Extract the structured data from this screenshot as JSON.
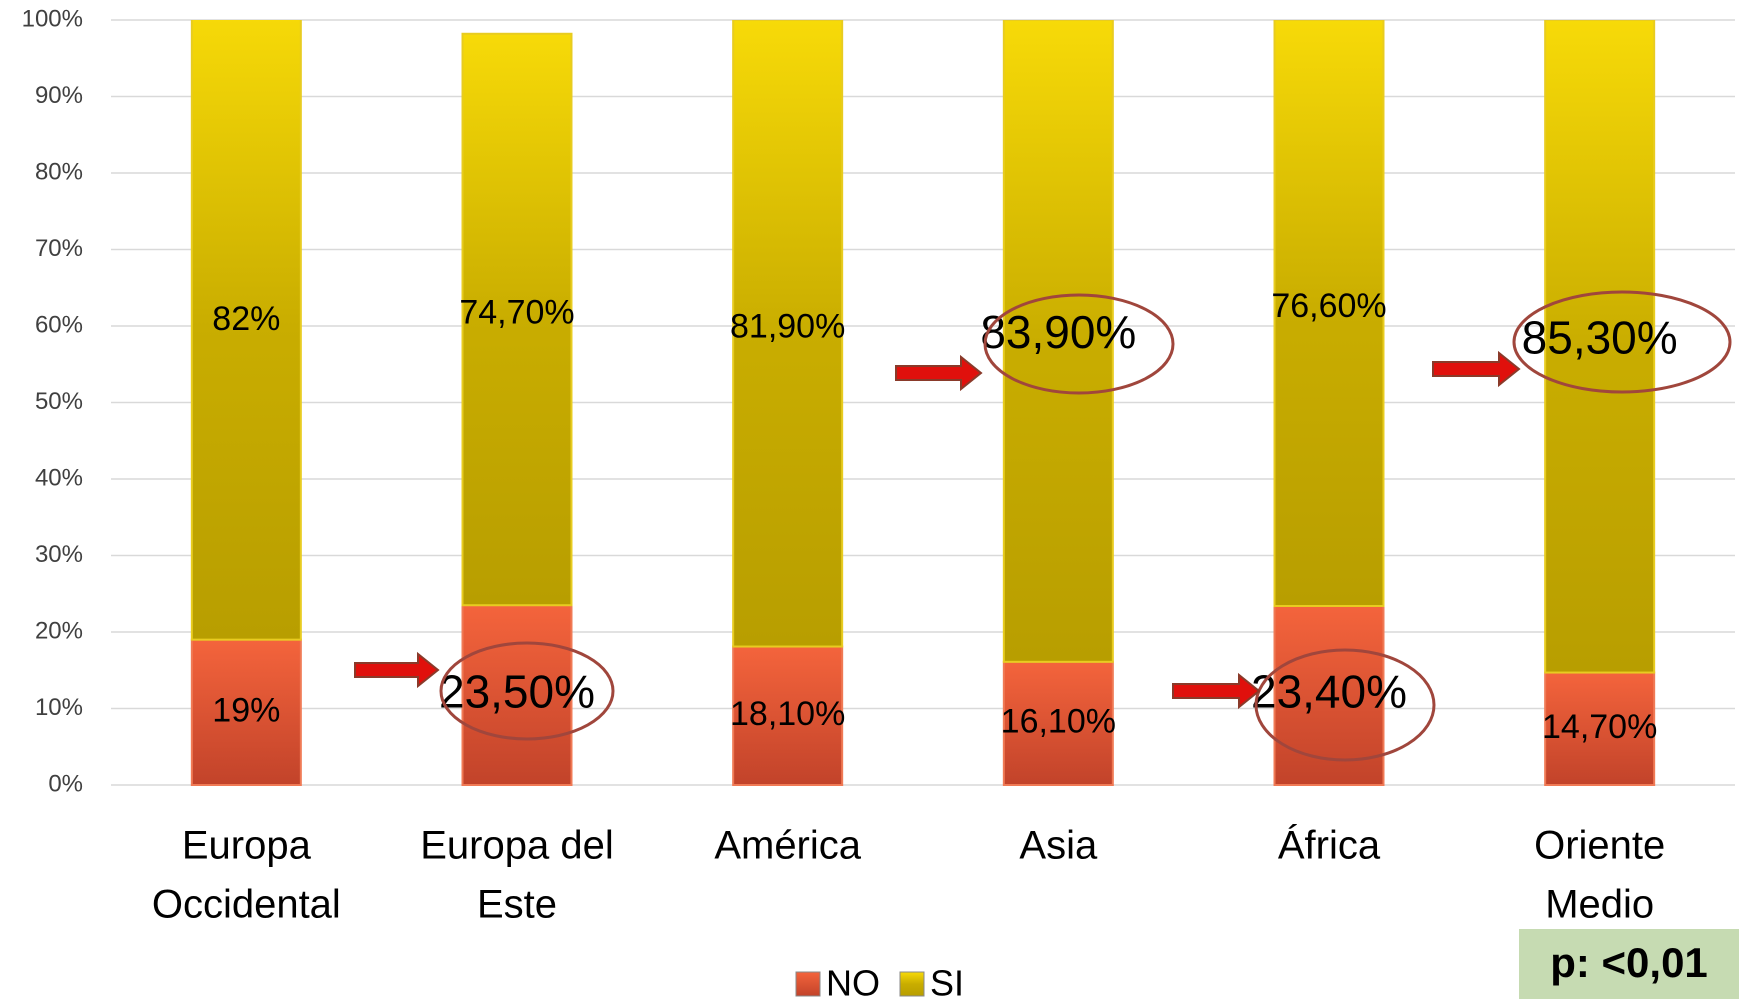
{
  "chart_data": {
    "type": "stacked-bar",
    "categories": [
      [
        "Europa",
        "Occidental"
      ],
      [
        "Europa del",
        "Este"
      ],
      [
        "América"
      ],
      [
        "Asia"
      ],
      [
        "África"
      ],
      [
        "Oriente",
        "Medio"
      ]
    ],
    "series": [
      {
        "name": "NO",
        "color": "#e3532f",
        "values": [
          19,
          23.5,
          18.1,
          16.1,
          23.4,
          14.7
        ],
        "value_labels": [
          "19%",
          "23,50%",
          "18,10%",
          "16,10%",
          "23,40%",
          "14,70%"
        ]
      },
      {
        "name": "SI",
        "color": "#d4b700",
        "values": [
          82,
          74.7,
          81.9,
          83.9,
          76.6,
          85.3
        ],
        "value_labels": [
          "82%",
          "74,70%",
          "81,90%",
          "83,90%",
          "76,60%",
          "85,30%"
        ]
      }
    ],
    "ylim": [
      0,
      100
    ],
    "yticks": [
      {
        "value": 0,
        "label": "0%"
      },
      {
        "value": 10,
        "label": "10%"
      },
      {
        "value": 20,
        "label": "20%"
      },
      {
        "value": 30,
        "label": "30%"
      },
      {
        "value": 40,
        "label": "40%"
      },
      {
        "value": 50,
        "label": "50%"
      },
      {
        "value": 60,
        "label": "60%"
      },
      {
        "value": 70,
        "label": "70%"
      },
      {
        "value": 80,
        "label": "80%"
      },
      {
        "value": 90,
        "label": "90%"
      },
      {
        "value": 100,
        "label": "100%"
      }
    ],
    "grid": true,
    "legend": "bottom",
    "annotation": "p: <0,01"
  }
}
